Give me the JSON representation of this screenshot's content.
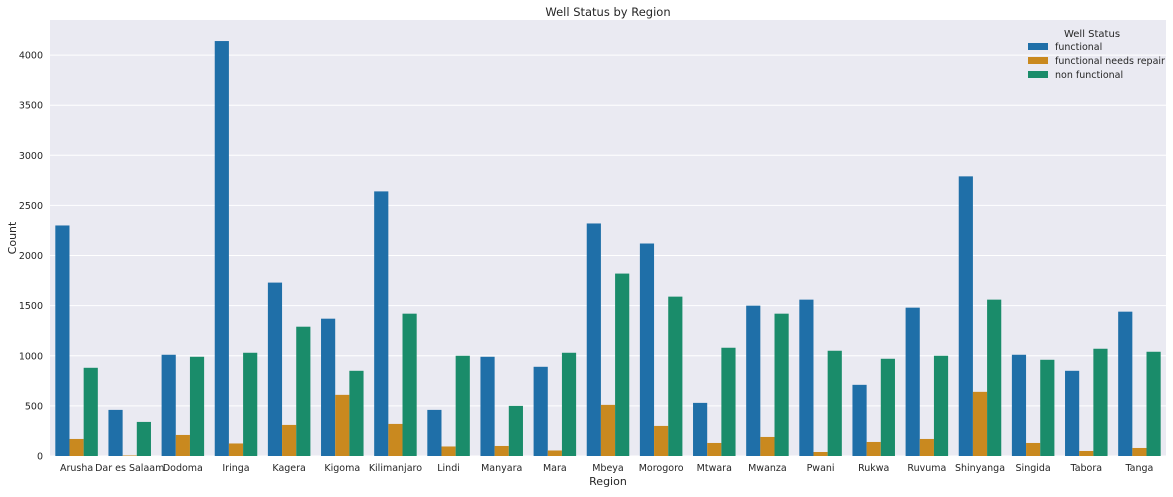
{
  "chart_data": {
    "type": "bar",
    "title": "Well Status by Region",
    "xlabel": "Region",
    "ylabel": "Count",
    "ylim": [
      0,
      4350
    ],
    "yticks": [
      0,
      500,
      1000,
      1500,
      2000,
      2500,
      3000,
      3500,
      4000
    ],
    "grid": true,
    "legend": {
      "title": "Well Status",
      "placement": "top-right"
    },
    "categories": [
      "Arusha",
      "Dar es Salaam",
      "Dodoma",
      "Iringa",
      "Kagera",
      "Kigoma",
      "Kilimanjaro",
      "Lindi",
      "Manyara",
      "Mara",
      "Mbeya",
      "Morogoro",
      "Mtwara",
      "Mwanza",
      "Pwani",
      "Rukwa",
      "Ruvuma",
      "Shinyanga",
      "Singida",
      "Tabora",
      "Tanga"
    ],
    "series": [
      {
        "name": "functional",
        "color": "#1f6fa8",
        "values": [
          2300,
          460,
          1010,
          4140,
          1730,
          1370,
          2640,
          460,
          990,
          890,
          2320,
          2120,
          530,
          1500,
          1560,
          710,
          1480,
          2790,
          1010,
          850,
          1440
        ]
      },
      {
        "name": "functional needs repair",
        "color": "#c9891f",
        "values": [
          170,
          5,
          210,
          125,
          310,
          610,
          320,
          95,
          100,
          55,
          510,
          300,
          130,
          190,
          40,
          140,
          170,
          640,
          130,
          50,
          80
        ]
      },
      {
        "name": "non functional",
        "color": "#1a8c6a",
        "values": [
          880,
          340,
          990,
          1030,
          1290,
          850,
          1420,
          1000,
          500,
          1030,
          1820,
          1590,
          1080,
          1420,
          1050,
          970,
          1000,
          1560,
          960,
          1070,
          1040
        ]
      }
    ]
  }
}
